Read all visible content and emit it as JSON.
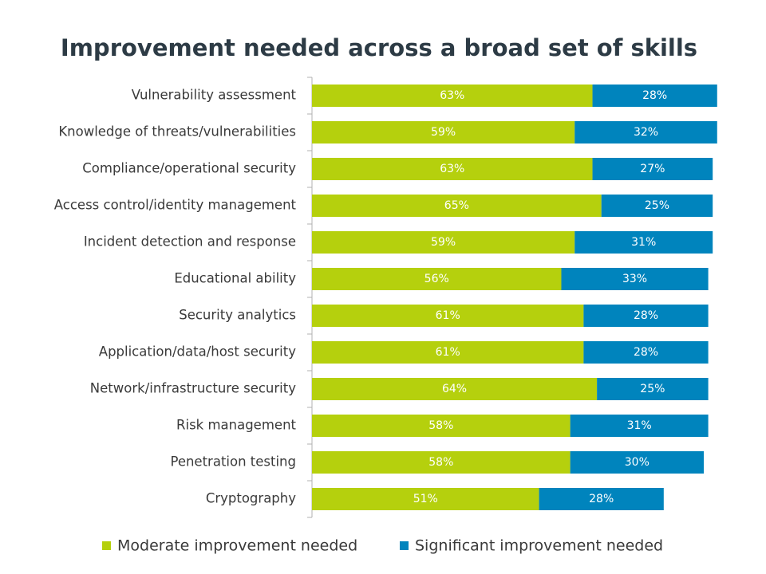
{
  "chart_data": {
    "type": "bar",
    "orientation": "horizontal",
    "stacked": true,
    "title": "Improvement needed across a broad set of skills",
    "categories": [
      "Vulnerability assessment",
      "Knowledge of threats/vulnerabilities",
      "Compliance/operational security",
      "Access control/identity management",
      "Incident detection and response",
      "Educational ability",
      "Security analytics",
      "Application/data/host security",
      "Network/infrastructure security",
      "Risk management",
      "Penetration testing",
      "Cryptography"
    ],
    "series": [
      {
        "name": "Moderate improvement needed",
        "color": "#b5d00d",
        "values": [
          63,
          59,
          63,
          65,
          59,
          56,
          61,
          61,
          64,
          58,
          58,
          51
        ],
        "labels": [
          "63%",
          "59%",
          "63%",
          "65%",
          "59%",
          "56%",
          "61%",
          "61%",
          "64%",
          "58%",
          "58%",
          "51%"
        ]
      },
      {
        "name": "Significant improvement needed",
        "color": "#0084bd",
        "values": [
          28,
          32,
          27,
          25,
          31,
          33,
          28,
          28,
          25,
          31,
          30,
          28
        ],
        "labels": [
          "28%",
          "32%",
          "27%",
          "25%",
          "31%",
          "33%",
          "28%",
          "28%",
          "25%",
          "31%",
          "30%",
          "28%"
        ]
      }
    ],
    "xlim": [
      0,
      100
    ],
    "grid": false,
    "legend_position": "bottom"
  }
}
